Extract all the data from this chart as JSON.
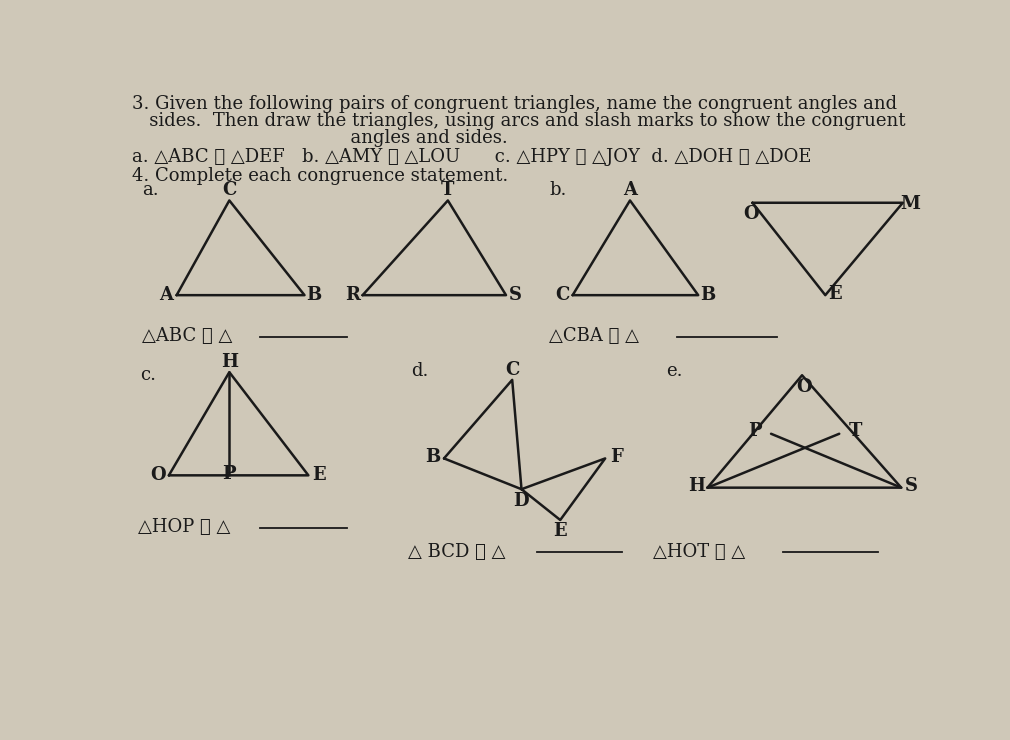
{
  "bg_color": "#cfc8b8",
  "text_color": "#1a1a1a",
  "line1": "3. Given the following pairs of congruent triangles, name the congruent angles and",
  "line2": "   sides.  Then draw the triangles, using arcs and slash marks to show the congruent",
  "line3": "                                      angles and sides.",
  "line_a": "a. △ABC ≅ △DEF   b. △AMY ≅ △LOU      c. △HPY ≅ △JOY  d. △DOH ≅ △DOE",
  "line_4": "4. Complete each congruence statement."
}
